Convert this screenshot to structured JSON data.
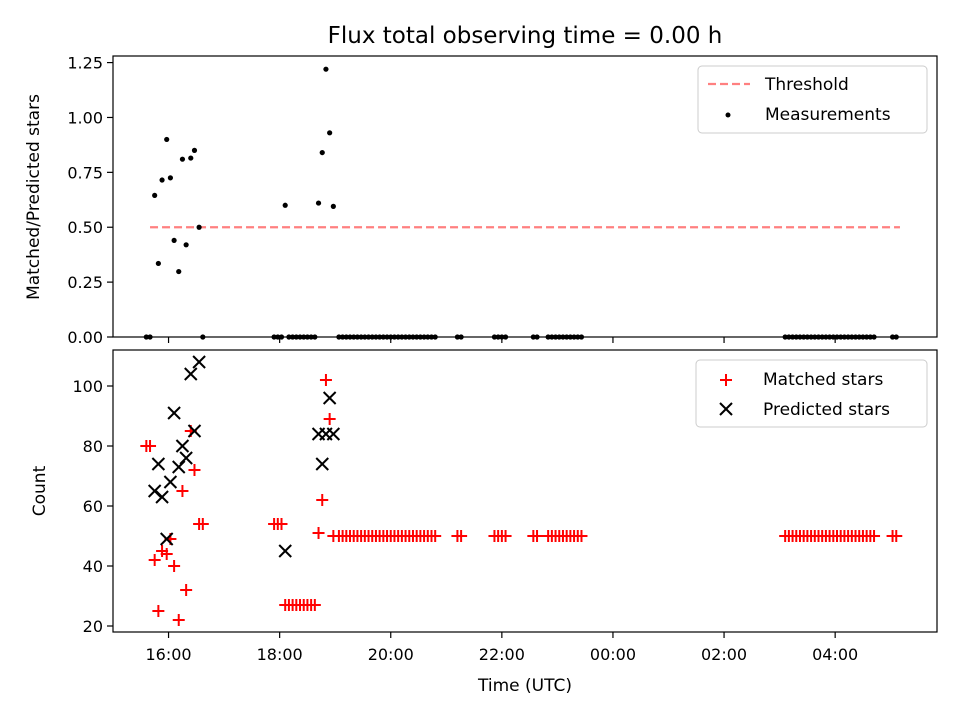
{
  "chart_data": [
    {
      "type": "scatter",
      "title": "Flux total observing time = 0.00 h",
      "ylabel": "Matched/Predicted stars",
      "xlabel": "",
      "xlim": [
        "15:00",
        "05:50"
      ],
      "ylim": [
        0,
        1.28
      ],
      "yticks": [
        "0.00",
        "0.25",
        "0.50",
        "0.75",
        "1.00",
        "1.25"
      ],
      "grid": false,
      "legend_position": "top-right",
      "legend": [
        "Threshold",
        "Measurements"
      ],
      "series": [
        {
          "name": "Threshold",
          "kind": "dashed-line",
          "color": "#ff8080",
          "points": [
            {
              "x": "15:40",
              "y": 0.5
            },
            {
              "x": "05:10",
              "y": 0.5
            }
          ]
        },
        {
          "name": "Measurements",
          "kind": "dot",
          "color": "#000000",
          "points": [
            {
              "x": "15:36",
              "y": 0
            },
            {
              "x": "15:40",
              "y": 0
            },
            {
              "x": "15:45",
              "y": 0.645
            },
            {
              "x": "15:49",
              "y": 0.335
            },
            {
              "x": "15:53",
              "y": 0.715
            },
            {
              "x": "15:58",
              "y": 0.9
            },
            {
              "x": "16:02",
              "y": 0.725
            },
            {
              "x": "16:06",
              "y": 0.44
            },
            {
              "x": "16:11",
              "y": 0.298
            },
            {
              "x": "16:15",
              "y": 0.81
            },
            {
              "x": "16:19",
              "y": 0.42
            },
            {
              "x": "16:24",
              "y": 0.815
            },
            {
              "x": "16:28",
              "y": 0.85
            },
            {
              "x": "16:33",
              "y": 0.5
            },
            {
              "x": "16:37",
              "y": 0
            },
            {
              "x": "17:54",
              "y": 0
            },
            {
              "x": "17:58",
              "y": 0
            },
            {
              "x": "18:02",
              "y": 0
            },
            {
              "x": "18:06",
              "y": 0.6
            },
            {
              "x": "18:10",
              "y": 0
            },
            {
              "x": "18:14",
              "y": 0
            },
            {
              "x": "18:18",
              "y": 0
            },
            {
              "x": "18:22",
              "y": 0
            },
            {
              "x": "18:26",
              "y": 0
            },
            {
              "x": "18:30",
              "y": 0
            },
            {
              "x": "18:34",
              "y": 0
            },
            {
              "x": "18:38",
              "y": 0
            },
            {
              "x": "18:42",
              "y": 0.61
            },
            {
              "x": "18:46",
              "y": 0.84
            },
            {
              "x": "18:50",
              "y": 1.22
            },
            {
              "x": "18:54",
              "y": 0.93
            },
            {
              "x": "18:58",
              "y": 0.595
            },
            {
              "x": "19:04",
              "y": 0
            },
            {
              "x": "19:08",
              "y": 0
            },
            {
              "x": "19:12",
              "y": 0
            },
            {
              "x": "19:16",
              "y": 0
            },
            {
              "x": "19:20",
              "y": 0
            },
            {
              "x": "19:24",
              "y": 0
            },
            {
              "x": "19:28",
              "y": 0
            },
            {
              "x": "19:32",
              "y": 0
            },
            {
              "x": "19:36",
              "y": 0
            },
            {
              "x": "19:40",
              "y": 0
            },
            {
              "x": "19:44",
              "y": 0
            },
            {
              "x": "19:48",
              "y": 0
            },
            {
              "x": "19:52",
              "y": 0
            },
            {
              "x": "19:56",
              "y": 0
            },
            {
              "x": "20:00",
              "y": 0
            },
            {
              "x": "20:04",
              "y": 0
            },
            {
              "x": "20:08",
              "y": 0
            },
            {
              "x": "20:12",
              "y": 0
            },
            {
              "x": "20:16",
              "y": 0
            },
            {
              "x": "20:20",
              "y": 0
            },
            {
              "x": "20:24",
              "y": 0
            },
            {
              "x": "20:28",
              "y": 0
            },
            {
              "x": "20:32",
              "y": 0
            },
            {
              "x": "20:36",
              "y": 0
            },
            {
              "x": "20:40",
              "y": 0
            },
            {
              "x": "20:44",
              "y": 0
            },
            {
              "x": "20:48",
              "y": 0
            },
            {
              "x": "21:12",
              "y": 0
            },
            {
              "x": "21:16",
              "y": 0
            },
            {
              "x": "21:52",
              "y": 0
            },
            {
              "x": "21:56",
              "y": 0
            },
            {
              "x": "22:00",
              "y": 0
            },
            {
              "x": "22:04",
              "y": 0
            },
            {
              "x": "22:34",
              "y": 0
            },
            {
              "x": "22:38",
              "y": 0
            },
            {
              "x": "22:50",
              "y": 0
            },
            {
              "x": "22:54",
              "y": 0
            },
            {
              "x": "22:58",
              "y": 0
            },
            {
              "x": "23:02",
              "y": 0
            },
            {
              "x": "23:06",
              "y": 0
            },
            {
              "x": "23:10",
              "y": 0
            },
            {
              "x": "23:14",
              "y": 0
            },
            {
              "x": "23:18",
              "y": 0
            },
            {
              "x": "23:22",
              "y": 0
            },
            {
              "x": "23:26",
              "y": 0
            },
            {
              "x": "03:06",
              "y": 0
            },
            {
              "x": "03:10",
              "y": 0
            },
            {
              "x": "03:14",
              "y": 0
            },
            {
              "x": "03:18",
              "y": 0
            },
            {
              "x": "03:22",
              "y": 0
            },
            {
              "x": "03:26",
              "y": 0
            },
            {
              "x": "03:30",
              "y": 0
            },
            {
              "x": "03:34",
              "y": 0
            },
            {
              "x": "03:38",
              "y": 0
            },
            {
              "x": "03:42",
              "y": 0
            },
            {
              "x": "03:46",
              "y": 0
            },
            {
              "x": "03:50",
              "y": 0
            },
            {
              "x": "03:54",
              "y": 0
            },
            {
              "x": "03:58",
              "y": 0
            },
            {
              "x": "04:02",
              "y": 0
            },
            {
              "x": "04:06",
              "y": 0
            },
            {
              "x": "04:10",
              "y": 0
            },
            {
              "x": "04:14",
              "y": 0
            },
            {
              "x": "04:18",
              "y": 0
            },
            {
              "x": "04:22",
              "y": 0
            },
            {
              "x": "04:26",
              "y": 0
            },
            {
              "x": "04:30",
              "y": 0
            },
            {
              "x": "04:34",
              "y": 0
            },
            {
              "x": "04:38",
              "y": 0
            },
            {
              "x": "04:42",
              "y": 0
            },
            {
              "x": "05:02",
              "y": 0
            },
            {
              "x": "05:06",
              "y": 0
            }
          ]
        }
      ]
    },
    {
      "type": "scatter",
      "title": "",
      "xlabel": "Time (UTC)",
      "ylabel": "Count",
      "xlim": [
        "15:00",
        "05:50"
      ],
      "ylim": [
        18,
        112
      ],
      "yticks": [
        "20",
        "40",
        "60",
        "80",
        "100"
      ],
      "xticks": [
        "16:00",
        "18:00",
        "20:00",
        "22:00",
        "00:00",
        "02:00",
        "04:00"
      ],
      "grid": false,
      "legend_position": "top-right",
      "legend": [
        "Matched stars",
        "Predicted stars"
      ],
      "series": [
        {
          "name": "Matched stars",
          "kind": "plus",
          "color": "#ff0000",
          "points": [
            {
              "x": "15:36",
              "y": 80
            },
            {
              "x": "15:40",
              "y": 80
            },
            {
              "x": "15:45",
              "y": 42
            },
            {
              "x": "15:49",
              "y": 25
            },
            {
              "x": "15:53",
              "y": 45
            },
            {
              "x": "15:58",
              "y": 44
            },
            {
              "x": "16:02",
              "y": 49
            },
            {
              "x": "16:06",
              "y": 40
            },
            {
              "x": "16:11",
              "y": 22
            },
            {
              "x": "16:15",
              "y": 65
            },
            {
              "x": "16:19",
              "y": 32
            },
            {
              "x": "16:24",
              "y": 85
            },
            {
              "x": "16:28",
              "y": 72
            },
            {
              "x": "16:33",
              "y": 54
            },
            {
              "x": "16:37",
              "y": 54
            },
            {
              "x": "17:54",
              "y": 54
            },
            {
              "x": "17:58",
              "y": 54
            },
            {
              "x": "18:02",
              "y": 54
            },
            {
              "x": "18:06",
              "y": 27
            },
            {
              "x": "18:10",
              "y": 27
            },
            {
              "x": "18:14",
              "y": 27
            },
            {
              "x": "18:18",
              "y": 27
            },
            {
              "x": "18:22",
              "y": 27
            },
            {
              "x": "18:26",
              "y": 27
            },
            {
              "x": "18:30",
              "y": 27
            },
            {
              "x": "18:34",
              "y": 27
            },
            {
              "x": "18:38",
              "y": 27
            },
            {
              "x": "18:42",
              "y": 51
            },
            {
              "x": "18:46",
              "y": 62
            },
            {
              "x": "18:50",
              "y": 102
            },
            {
              "x": "18:54",
              "y": 89
            },
            {
              "x": "18:58",
              "y": 50
            },
            {
              "x": "19:04",
              "y": 50
            },
            {
              "x": "19:08",
              "y": 50
            },
            {
              "x": "19:12",
              "y": 50
            },
            {
              "x": "19:16",
              "y": 50
            },
            {
              "x": "19:20",
              "y": 50
            },
            {
              "x": "19:24",
              "y": 50
            },
            {
              "x": "19:28",
              "y": 50
            },
            {
              "x": "19:32",
              "y": 50
            },
            {
              "x": "19:36",
              "y": 50
            },
            {
              "x": "19:40",
              "y": 50
            },
            {
              "x": "19:44",
              "y": 50
            },
            {
              "x": "19:48",
              "y": 50
            },
            {
              "x": "19:52",
              "y": 50
            },
            {
              "x": "19:56",
              "y": 50
            },
            {
              "x": "20:00",
              "y": 50
            },
            {
              "x": "20:04",
              "y": 50
            },
            {
              "x": "20:08",
              "y": 50
            },
            {
              "x": "20:12",
              "y": 50
            },
            {
              "x": "20:16",
              "y": 50
            },
            {
              "x": "20:20",
              "y": 50
            },
            {
              "x": "20:24",
              "y": 50
            },
            {
              "x": "20:28",
              "y": 50
            },
            {
              "x": "20:32",
              "y": 50
            },
            {
              "x": "20:36",
              "y": 50
            },
            {
              "x": "20:40",
              "y": 50
            },
            {
              "x": "20:44",
              "y": 50
            },
            {
              "x": "20:48",
              "y": 50
            },
            {
              "x": "21:12",
              "y": 50
            },
            {
              "x": "21:16",
              "y": 50
            },
            {
              "x": "21:52",
              "y": 50
            },
            {
              "x": "21:56",
              "y": 50
            },
            {
              "x": "22:00",
              "y": 50
            },
            {
              "x": "22:04",
              "y": 50
            },
            {
              "x": "22:34",
              "y": 50
            },
            {
              "x": "22:38",
              "y": 50
            },
            {
              "x": "22:50",
              "y": 50
            },
            {
              "x": "22:54",
              "y": 50
            },
            {
              "x": "22:58",
              "y": 50
            },
            {
              "x": "23:02",
              "y": 50
            },
            {
              "x": "23:06",
              "y": 50
            },
            {
              "x": "23:10",
              "y": 50
            },
            {
              "x": "23:14",
              "y": 50
            },
            {
              "x": "23:18",
              "y": 50
            },
            {
              "x": "23:22",
              "y": 50
            },
            {
              "x": "23:26",
              "y": 50
            },
            {
              "x": "03:06",
              "y": 50
            },
            {
              "x": "03:10",
              "y": 50
            },
            {
              "x": "03:14",
              "y": 50
            },
            {
              "x": "03:18",
              "y": 50
            },
            {
              "x": "03:22",
              "y": 50
            },
            {
              "x": "03:26",
              "y": 50
            },
            {
              "x": "03:30",
              "y": 50
            },
            {
              "x": "03:34",
              "y": 50
            },
            {
              "x": "03:38",
              "y": 50
            },
            {
              "x": "03:42",
              "y": 50
            },
            {
              "x": "03:46",
              "y": 50
            },
            {
              "x": "03:50",
              "y": 50
            },
            {
              "x": "03:54",
              "y": 50
            },
            {
              "x": "03:58",
              "y": 50
            },
            {
              "x": "04:02",
              "y": 50
            },
            {
              "x": "04:06",
              "y": 50
            },
            {
              "x": "04:10",
              "y": 50
            },
            {
              "x": "04:14",
              "y": 50
            },
            {
              "x": "04:18",
              "y": 50
            },
            {
              "x": "04:22",
              "y": 50
            },
            {
              "x": "04:26",
              "y": 50
            },
            {
              "x": "04:30",
              "y": 50
            },
            {
              "x": "04:34",
              "y": 50
            },
            {
              "x": "04:38",
              "y": 50
            },
            {
              "x": "04:42",
              "y": 50
            },
            {
              "x": "05:02",
              "y": 50
            },
            {
              "x": "05:06",
              "y": 50
            }
          ]
        },
        {
          "name": "Predicted stars",
          "kind": "x",
          "color": "#000000",
          "points": [
            {
              "x": "15:45",
              "y": 65
            },
            {
              "x": "15:49",
              "y": 74
            },
            {
              "x": "15:53",
              "y": 63
            },
            {
              "x": "15:58",
              "y": 49
            },
            {
              "x": "16:02",
              "y": 68
            },
            {
              "x": "16:06",
              "y": 91
            },
            {
              "x": "16:11",
              "y": 73
            },
            {
              "x": "16:15",
              "y": 80
            },
            {
              "x": "16:19",
              "y": 76
            },
            {
              "x": "16:24",
              "y": 104
            },
            {
              "x": "16:28",
              "y": 85
            },
            {
              "x": "16:33",
              "y": 108
            },
            {
              "x": "18:06",
              "y": 45
            },
            {
              "x": "18:42",
              "y": 84
            },
            {
              "x": "18:46",
              "y": 74
            },
            {
              "x": "18:50",
              "y": 84
            },
            {
              "x": "18:54",
              "y": 96
            },
            {
              "x": "18:58",
              "y": 84
            }
          ]
        }
      ]
    }
  ]
}
